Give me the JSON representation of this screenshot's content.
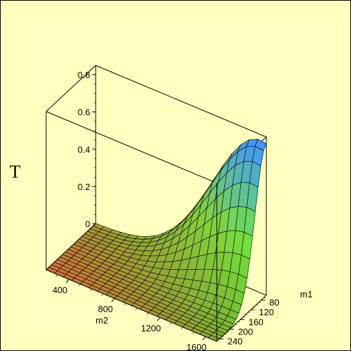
{
  "chart_data": {
    "type": "surface3d",
    "title": "",
    "zlabel": "T",
    "xlabel": "m2",
    "ylabel": "m1",
    "x_ticks": [
      400,
      800,
      1200,
      1600
    ],
    "y_ticks": [
      80,
      120,
      160,
      200,
      240
    ],
    "z_ticks": [
      "0",
      "0.2",
      "0.4",
      "0.6",
      "0.8"
    ],
    "z_tick_values": [
      0,
      0.2,
      0.4,
      0.6,
      0.8
    ],
    "xlim": [
      200,
      1700
    ],
    "ylim": [
      60,
      250
    ],
    "zlim": [
      0,
      0.85
    ],
    "surface": {
      "peak": {
        "m2": 1650,
        "m1": 60,
        "T": 0.82
      },
      "grid_m2": 20,
      "grid_m1": 18
    },
    "colors": {
      "background": "#ffffc0",
      "box": "#000000",
      "mesh": "#000000",
      "color_low": "#ff8040",
      "color_mid": "#66ff40",
      "color_high": "#4090ff"
    }
  }
}
